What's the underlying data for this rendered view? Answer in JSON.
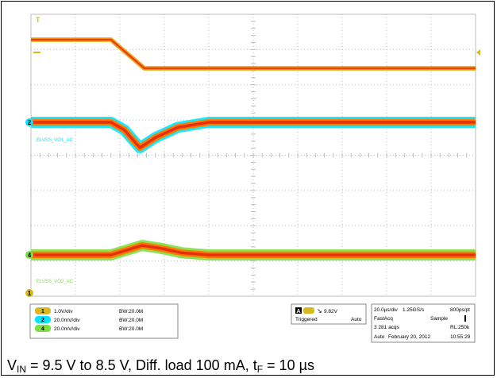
{
  "chart_data": {
    "type": "line",
    "title": "",
    "xlabel": "",
    "ylabel": "",
    "grid": true,
    "x_divisions": 10,
    "y_divisions": 8,
    "series": [
      {
        "channel": "1",
        "color": "#d8b820",
        "x": [
          0,
          1.8,
          2.55,
          10
        ],
        "y": [
          9.5,
          9.5,
          8.5,
          8.5
        ]
      },
      {
        "channel": "2",
        "color": "#00e5ff",
        "label": "ELVSS_VO1_AC",
        "x": [
          0,
          1.8,
          2.1,
          2.45,
          2.8,
          3.3,
          4.0,
          10
        ],
        "y": [
          0,
          0,
          -6,
          -20,
          -12,
          -4,
          0,
          0
        ]
      },
      {
        "channel": "4",
        "color": "#7de040",
        "label": "ELVSS_VO2_AC",
        "x": [
          0,
          1.8,
          2.2,
          2.5,
          2.9,
          3.4,
          4.0,
          10
        ],
        "y": [
          0,
          0,
          4,
          7,
          5,
          1.5,
          0,
          0
        ]
      }
    ],
    "ref_marker": {
      "label": "T"
    },
    "channel_settings": [
      {
        "scale": "1.0V/div",
        "bw": "B",
        "bw_value": "20.0M"
      },
      {
        "scale": "20.0mV/div",
        "bw": "B",
        "bw_value": "20.0M"
      },
      {
        "scale": "20.0mV/div",
        "bw": "B",
        "bw_value": "20.0M"
      }
    ],
    "trigger": {
      "source": "A",
      "level": "9.82V",
      "state": "Triggered",
      "mode": "Auto"
    },
    "acquisition": {
      "timebase": "20.0µs/div",
      "sample_rate": "1.25GS/s",
      "resolution": "800ps/pt",
      "acq_mode": "FastAcq",
      "sample": "Sample",
      "acqs": "3 281 acqs",
      "rl": "RL:250k",
      "run_mode": "Auto",
      "date": "February 20, 2012",
      "time": "10:55:29"
    }
  },
  "caption": {
    "v": "V",
    "in_sub": "IN",
    "text": " = 9.5 V to 8.5 V, Diff. load 100 mA, t",
    "f_sub": "F",
    "tail": " = 10 µs"
  }
}
